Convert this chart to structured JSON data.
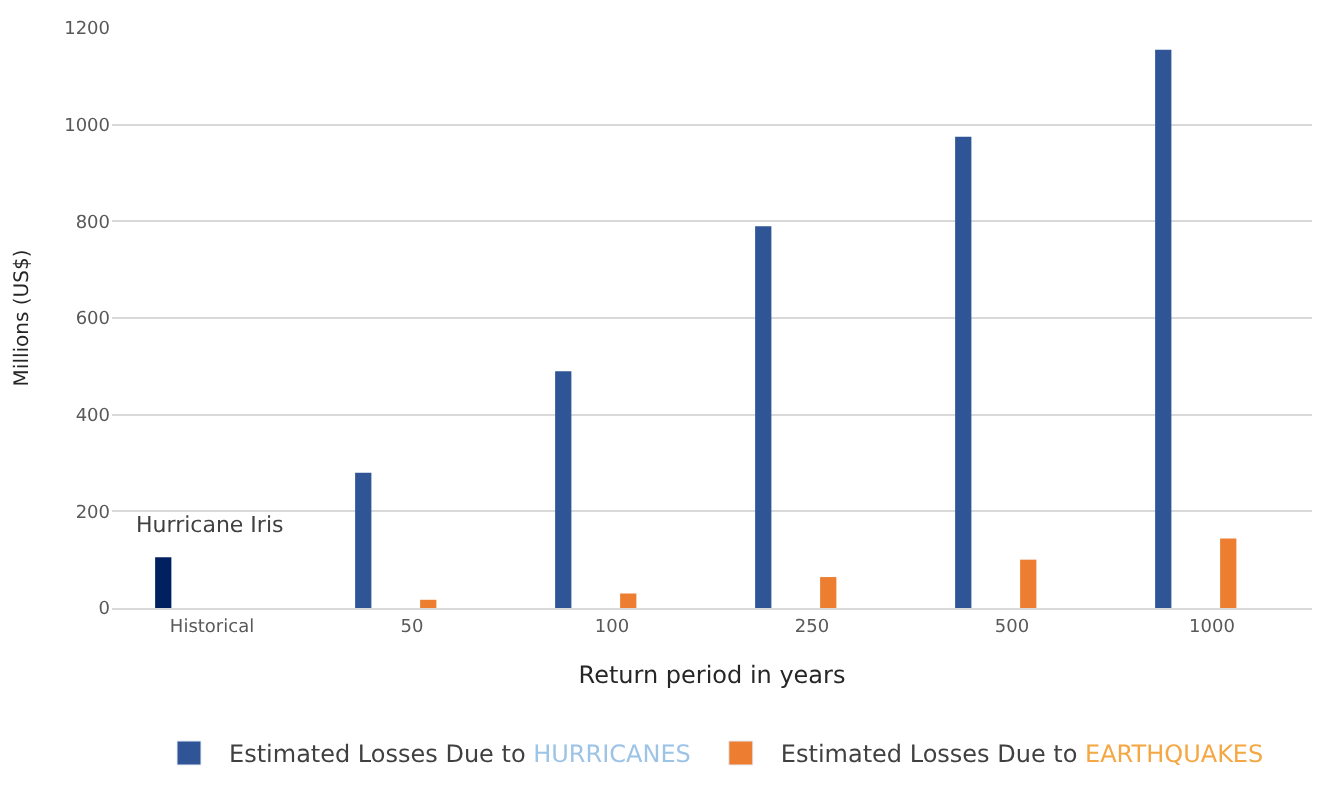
{
  "chart_data": {
    "type": "bar",
    "xlabel": "Return period in years",
    "ylabel": "Millions (US$)",
    "categories": [
      "Historical",
      "50",
      "100",
      "250",
      "500",
      "1000"
    ],
    "series": [
      {
        "name": "Estimated Losses Due to HURRICANES",
        "color": "#2f5597",
        "colors": [
          "#002060",
          "#2f5597",
          "#2f5597",
          "#2f5597",
          "#2f5597",
          "#2f5597"
        ],
        "values": [
          105,
          280,
          490,
          790,
          975,
          1155
        ]
      },
      {
        "name": "Estimated Losses Due to EARTHQUAKES",
        "color": "#ed7d31",
        "values": [
          null,
          17,
          30,
          64,
          100,
          144
        ]
      }
    ],
    "annotations": [
      "Hurricane Iris"
    ],
    "ylim": [
      0,
      1200
    ],
    "yticks": [
      0,
      200,
      400,
      600,
      800,
      1000,
      1200
    ],
    "grid": "y",
    "legend": "bottom"
  }
}
